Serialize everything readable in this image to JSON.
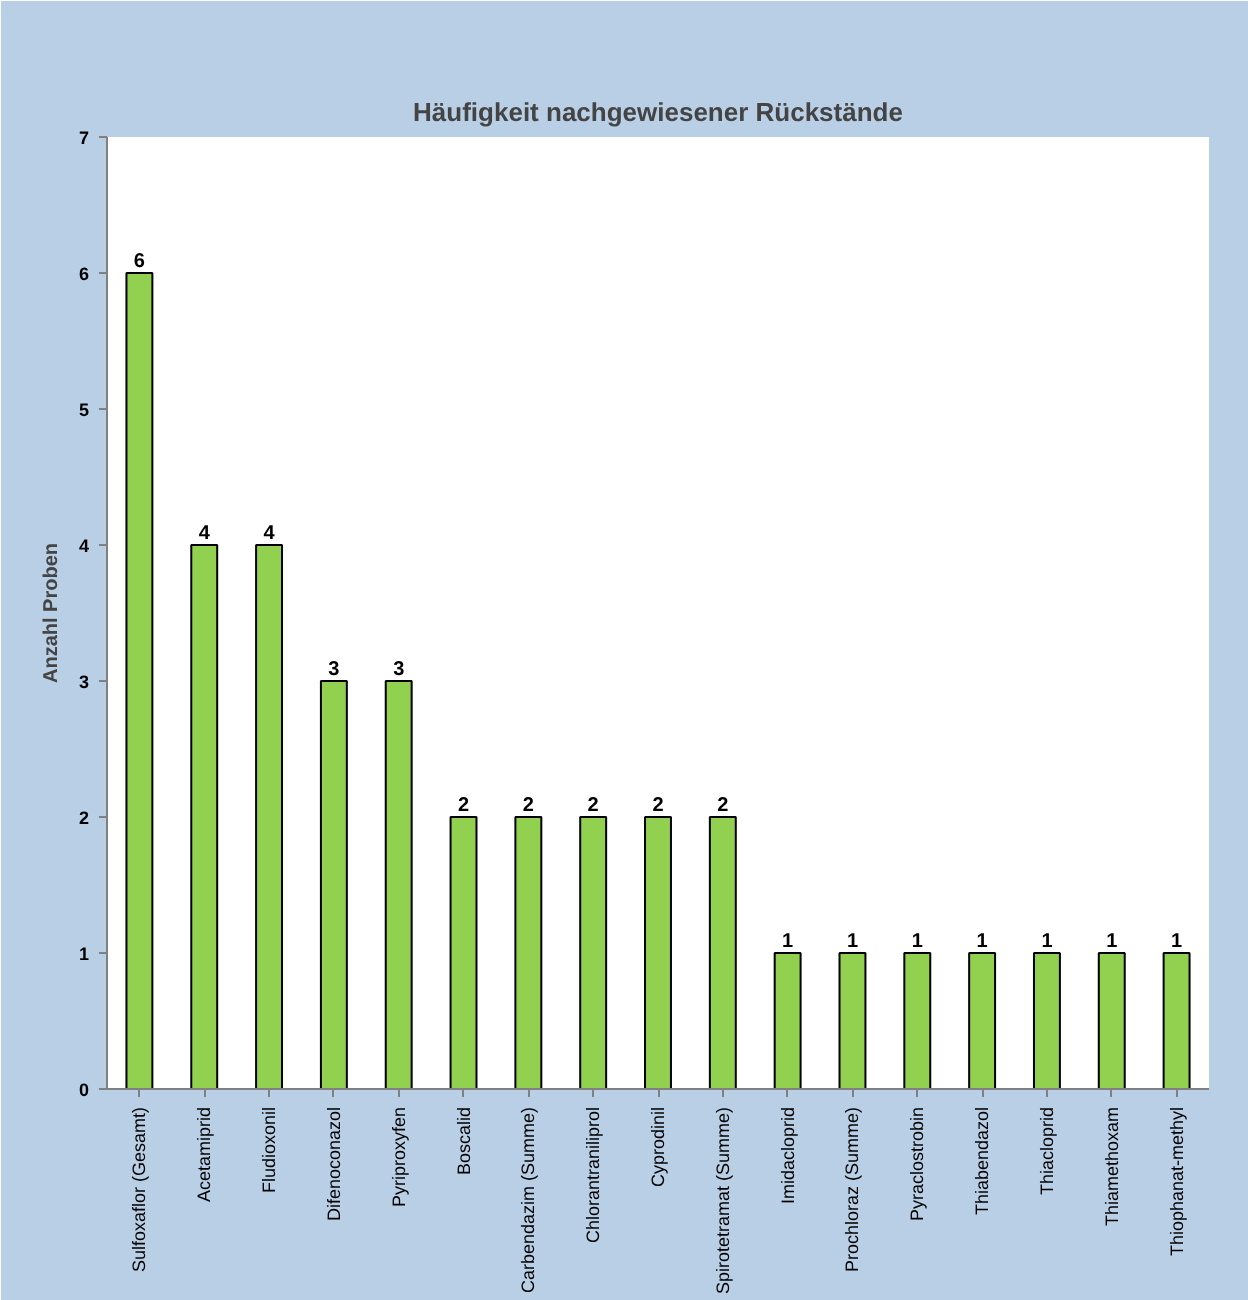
{
  "chart_data": {
    "type": "bar",
    "title": "Häufigkeit nachgewiesener Rückstände",
    "ylabel": "Anzahl Proben",
    "categories": [
      "Sulfoxaflor (Gesamt)",
      "Acetamiprid",
      "Fludioxonil",
      "Difenoconazol",
      "Pyriproxyfen",
      "Boscalid",
      "Carbendazim (Summe)",
      "Chlorantraniliprol",
      "Cyprodinil",
      "Spirotetramat (Summe)",
      "Imidacloprid",
      "Prochloraz (Summe)",
      "Pyraclostrobin",
      "Thiabendazol",
      "Thiacloprid",
      "Thiamethoxam",
      "Thiophanat-methyl"
    ],
    "values": [
      6,
      4,
      4,
      3,
      3,
      2,
      2,
      2,
      2,
      2,
      1,
      1,
      1,
      1,
      1,
      1,
      1
    ],
    "color": "#92d050",
    "ylim": [
      0,
      7
    ],
    "yticks": [
      0,
      1,
      2,
      3,
      4,
      5,
      6,
      7
    ],
    "grid": false,
    "data_labels": true
  }
}
